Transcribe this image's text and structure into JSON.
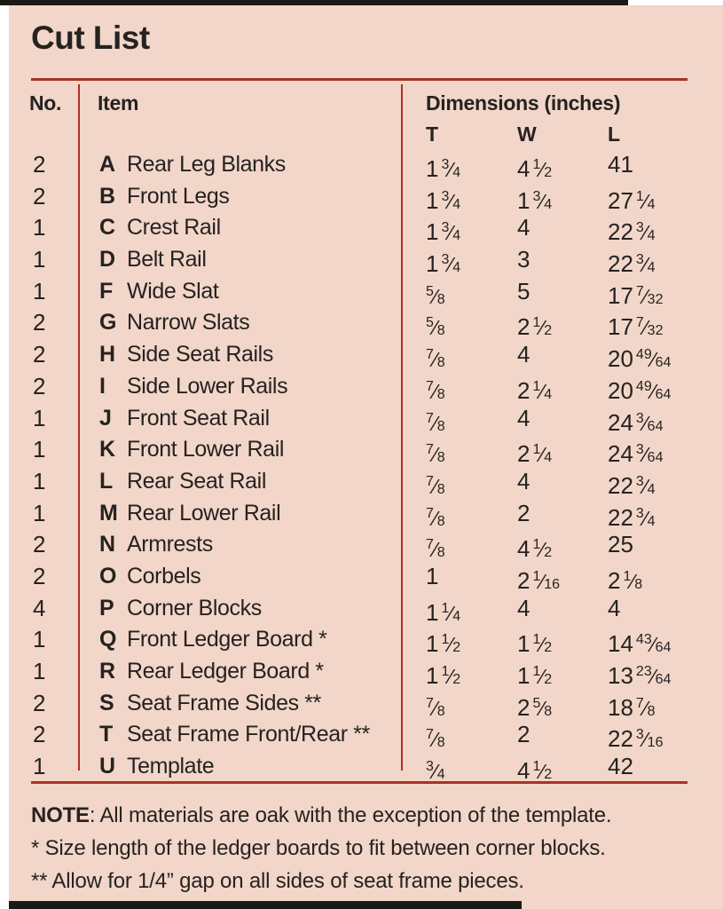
{
  "title": "Cut List",
  "colors": {
    "panel_background": "#f1d6c9",
    "rule_red": "#a93129",
    "text": "#262220",
    "scan_bar": "#1b1916",
    "page_margin": "#ffffff"
  },
  "table": {
    "headers": {
      "no": "No.",
      "item": "Item",
      "dimensions": "Dimensions (inches)",
      "t": "T",
      "w": "W",
      "l": "L"
    },
    "rows": [
      {
        "qty": "2",
        "letter": "A",
        "name": "Rear Leg Blanks",
        "t": "1 3/4",
        "w": "4 1/2",
        "l": "41"
      },
      {
        "qty": "2",
        "letter": "B",
        "name": "Front Legs",
        "t": "1 3/4",
        "w": "1 3/4",
        "l": "27 1/4"
      },
      {
        "qty": "1",
        "letter": "C",
        "name": "Crest Rail",
        "t": "1 3/4",
        "w": "4",
        "l": "22 3/4"
      },
      {
        "qty": "1",
        "letter": "D",
        "name": "Belt Rail",
        "t": "1 3/4",
        "w": "3",
        "l": "22 3/4"
      },
      {
        "qty": "1",
        "letter": "F",
        "name": "Wide Slat",
        "t": "5/8",
        "w": "5",
        "l": "17 7/32"
      },
      {
        "qty": "2",
        "letter": "G",
        "name": "Narrow Slats",
        "t": "5/8",
        "w": "2 1/2",
        "l": "17 7/32"
      },
      {
        "qty": "2",
        "letter": "H",
        "name": "Side Seat Rails",
        "t": "7/8",
        "w": "4",
        "l": "20 49/64"
      },
      {
        "qty": "2",
        "letter": "I",
        "name": "Side Lower Rails",
        "t": "7/8",
        "w": "2 1/4",
        "l": "20 49/64"
      },
      {
        "qty": "1",
        "letter": "J",
        "name": "Front Seat Rail",
        "t": "7/8",
        "w": "4",
        "l": "24 3/64"
      },
      {
        "qty": "1",
        "letter": "K",
        "name": "Front Lower Rail",
        "t": "7/8",
        "w": "2 1/4",
        "l": "24 3/64"
      },
      {
        "qty": "1",
        "letter": "L",
        "name": "Rear Seat Rail",
        "t": "7/8",
        "w": "4",
        "l": "22 3/4"
      },
      {
        "qty": "1",
        "letter": "M",
        "name": "Rear Lower Rail",
        "t": "7/8",
        "w": "2",
        "l": "22 3/4"
      },
      {
        "qty": "2",
        "letter": "N",
        "name": "Armrests",
        "t": "7/8",
        "w": "4 1/2",
        "l": "25"
      },
      {
        "qty": "2",
        "letter": "O",
        "name": "Corbels",
        "t": "1",
        "w": "2 1/16",
        "l": "2 1/8"
      },
      {
        "qty": "4",
        "letter": "P",
        "name": "Corner Blocks",
        "t": "1 1/4",
        "w": "4",
        "l": "4"
      },
      {
        "qty": "1",
        "letter": "Q",
        "name": "Front Ledger Board *",
        "t": "1 1/2",
        "w": "1 1/2",
        "l": "14 43/64"
      },
      {
        "qty": "1",
        "letter": "R",
        "name": "Rear Ledger Board *",
        "t": "1 1/2",
        "w": "1 1/2",
        "l": "13 23/64"
      },
      {
        "qty": "2",
        "letter": "S",
        "name": "Seat Frame Sides **",
        "t": "7/8",
        "w": "2 5/8",
        "l": "18 7/8"
      },
      {
        "qty": "2",
        "letter": "T",
        "name": "Seat Frame Front/Rear **",
        "t": "7/8",
        "w": "2",
        "l": "22 3/16"
      },
      {
        "qty": "1",
        "letter": "U",
        "name": "Template",
        "t": "3/4",
        "w": "4 1/2",
        "l": "42"
      }
    ]
  },
  "notes": {
    "note_label": "NOTE",
    "note_text": ": All materials are oak with the exception of the template.",
    "footnote1": "* Size length of the ledger boards to fit between corner blocks.",
    "footnote2": "** Allow for 1/4” gap on all sides of seat frame pieces."
  }
}
